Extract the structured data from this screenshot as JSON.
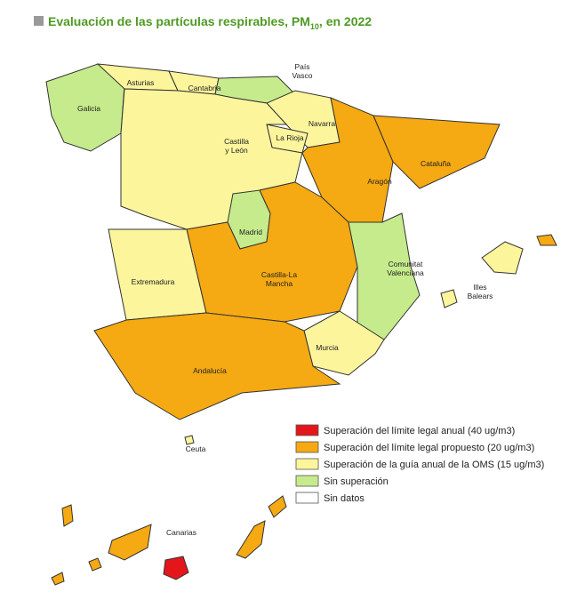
{
  "title": {
    "prefix": "Evaluación de las partículas respirables, PM",
    "subscript": "10",
    "suffix": ", en 2022"
  },
  "regions": {
    "galicia": [
      "Galicia"
    ],
    "asturias": [
      "Asturias"
    ],
    "cantabria": [
      "Cantabria"
    ],
    "pais_vasco": [
      "País",
      "Vasco"
    ],
    "navarra": [
      "Navarra"
    ],
    "la_rioja": [
      "La Rioja"
    ],
    "castilla_leon": [
      "Castilla",
      "y León"
    ],
    "aragon": [
      "Aragón"
    ],
    "cataluna": [
      "Cataluña"
    ],
    "madrid": [
      "Madrid"
    ],
    "extremadura": [
      "Extremadura"
    ],
    "castilla_la_mancha": [
      "Castilla-La",
      "Mancha"
    ],
    "valenciana": [
      "Comunitat",
      "Valenciana"
    ],
    "baleares": [
      "Illes",
      "Balears"
    ],
    "murcia": [
      "Murcia"
    ],
    "andalucia": [
      "Andalucía"
    ],
    "ceuta": [
      "Ceuta"
    ],
    "canarias": [
      "Canarias"
    ]
  },
  "legend": [
    {
      "label": "Superación del límite legal anual (40 ug/m3)",
      "color": "#e3161c"
    },
    {
      "label": "Superación del límite legal propuesto (20 ug/m3)",
      "color": "#f5a912"
    },
    {
      "label": "Superación de la guía anual de la OMS (15 ug/m3)",
      "color": "#fcf59c"
    },
    {
      "label": "Sin superación",
      "color": "#c6eb8c"
    },
    {
      "label": "Sin datos",
      "color": "#ffffff"
    }
  ]
}
